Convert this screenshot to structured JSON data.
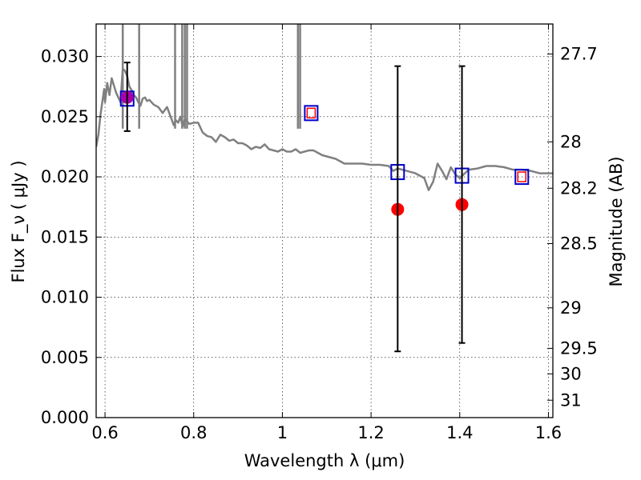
{
  "chart_data": {
    "type": "scatter",
    "title": "",
    "xlabel": "Wavelength  λ (μm)",
    "ylabel": "Flux  F_ν  ( μJy )",
    "ylabel_right": "Magnitude (AB)",
    "xlim": [
      0.58,
      1.61
    ],
    "ylim": [
      0.0,
      0.0327
    ],
    "grid": true,
    "x_ticks": [
      {
        "value": 0.6,
        "label": "0.6"
      },
      {
        "value": 0.8,
        "label": "0.8"
      },
      {
        "value": 1.0,
        "label": "1"
      },
      {
        "value": 1.2,
        "label": "1.2"
      },
      {
        "value": 1.4,
        "label": "1.4"
      },
      {
        "value": 1.6,
        "label": "1.6"
      }
    ],
    "y_ticks": [
      {
        "value": 0.0,
        "label": "0.000"
      },
      {
        "value": 0.005,
        "label": "0.005"
      },
      {
        "value": 0.01,
        "label": "0.010"
      },
      {
        "value": 0.015,
        "label": "0.015"
      },
      {
        "value": 0.02,
        "label": "0.020"
      },
      {
        "value": 0.025,
        "label": "0.025"
      },
      {
        "value": 0.03,
        "label": "0.030"
      }
    ],
    "y_ticks_right": [
      {
        "mag": 27.7,
        "label": "27.7"
      },
      {
        "mag": 28.0,
        "label": "28"
      },
      {
        "mag": 28.2,
        "label": "28.2"
      },
      {
        "mag": 28.5,
        "label": "28.5"
      },
      {
        "mag": 29.0,
        "label": "29"
      },
      {
        "mag": 29.5,
        "label": "29.5"
      },
      {
        "mag": 30.0,
        "label": "30"
      },
      {
        "mag": 31.0,
        "label": "31"
      }
    ],
    "series": [
      {
        "kind": "line",
        "color": "#808080",
        "points": [
          [
            0.58,
            0.0225
          ],
          [
            0.585,
            0.0235
          ],
          [
            0.59,
            0.0252
          ],
          [
            0.595,
            0.0265
          ],
          [
            0.598,
            0.0273
          ],
          [
            0.6,
            0.0262
          ],
          [
            0.605,
            0.0278
          ],
          [
            0.61,
            0.0268
          ],
          [
            0.615,
            0.0282
          ],
          [
            0.62,
            0.0276
          ],
          [
            0.625,
            0.027
          ],
          [
            0.63,
            0.0266
          ],
          [
            0.635,
            0.0262
          ],
          [
            0.64,
            0.029
          ],
          [
            0.645,
            0.0288
          ],
          [
            0.65,
            0.0284
          ],
          [
            0.655,
            0.0275
          ],
          [
            0.66,
            0.0272
          ],
          [
            0.665,
            0.0268
          ],
          [
            0.67,
            0.0266
          ],
          [
            0.675,
            0.0262
          ],
          [
            0.68,
            0.0259
          ],
          [
            0.685,
            0.0265
          ],
          [
            0.69,
            0.0266
          ],
          [
            0.695,
            0.0263
          ],
          [
            0.7,
            0.0264
          ],
          [
            0.71,
            0.026
          ],
          [
            0.72,
            0.0258
          ],
          [
            0.73,
            0.0253
          ],
          [
            0.74,
            0.0258
          ],
          [
            0.75,
            0.0248
          ],
          [
            0.755,
            0.0243
          ],
          [
            0.76,
            0.0247
          ],
          [
            0.765,
            0.0245
          ],
          [
            0.77,
            0.025
          ],
          [
            0.775,
            0.0242
          ],
          [
            0.78,
            0.0248
          ],
          [
            0.79,
            0.0244
          ],
          [
            0.8,
            0.0245
          ],
          [
            0.81,
            0.0245
          ],
          [
            0.82,
            0.0237
          ],
          [
            0.83,
            0.0234
          ],
          [
            0.84,
            0.0233
          ],
          [
            0.85,
            0.0229
          ],
          [
            0.86,
            0.0235
          ],
          [
            0.87,
            0.0233
          ],
          [
            0.88,
            0.023
          ],
          [
            0.89,
            0.0231
          ],
          [
            0.9,
            0.0228
          ],
          [
            0.91,
            0.0228
          ],
          [
            0.92,
            0.0226
          ],
          [
            0.93,
            0.0223
          ],
          [
            0.94,
            0.0225
          ],
          [
            0.95,
            0.0224
          ],
          [
            0.96,
            0.0227
          ],
          [
            0.97,
            0.0223
          ],
          [
            0.98,
            0.0222
          ],
          [
            0.99,
            0.0221
          ],
          [
            1.0,
            0.0223
          ],
          [
            1.01,
            0.0221
          ],
          [
            1.02,
            0.0221
          ],
          [
            1.03,
            0.0223
          ],
          [
            1.04,
            0.022
          ],
          [
            1.05,
            0.0221
          ],
          [
            1.06,
            0.0222
          ],
          [
            1.07,
            0.0222
          ],
          [
            1.08,
            0.022
          ],
          [
            1.09,
            0.0218
          ],
          [
            1.1,
            0.0217
          ],
          [
            1.12,
            0.0215
          ],
          [
            1.14,
            0.0211
          ],
          [
            1.16,
            0.0211
          ],
          [
            1.18,
            0.0211
          ],
          [
            1.2,
            0.021
          ],
          [
            1.22,
            0.021
          ],
          [
            1.24,
            0.0209
          ],
          [
            1.25,
            0.0205
          ],
          [
            1.26,
            0.0207
          ],
          [
            1.28,
            0.0205
          ],
          [
            1.3,
            0.0203
          ],
          [
            1.32,
            0.0199
          ],
          [
            1.33,
            0.0189
          ],
          [
            1.34,
            0.0196
          ],
          [
            1.35,
            0.0211
          ],
          [
            1.36,
            0.0205
          ],
          [
            1.37,
            0.0198
          ],
          [
            1.38,
            0.0208
          ],
          [
            1.39,
            0.0202
          ],
          [
            1.4,
            0.0199
          ],
          [
            1.42,
            0.0206
          ],
          [
            1.44,
            0.0207
          ],
          [
            1.46,
            0.0209
          ],
          [
            1.48,
            0.0209
          ],
          [
            1.5,
            0.0208
          ],
          [
            1.52,
            0.0206
          ],
          [
            1.54,
            0.0206
          ],
          [
            1.56,
            0.0205
          ],
          [
            1.58,
            0.0203
          ],
          [
            1.6,
            0.0203
          ],
          [
            1.61,
            0.0203
          ]
        ]
      },
      {
        "kind": "spikes",
        "color": "#808080",
        "x": [
          0.64,
          0.677,
          0.758,
          0.774,
          0.78,
          0.785,
          1.035,
          1.04
        ]
      },
      {
        "kind": "model-photometry",
        "marker": "square",
        "color": "#0000cc",
        "points": [
          [
            0.65,
            0.0265
          ],
          [
            1.065,
            0.0253
          ],
          [
            1.26,
            0.0204
          ],
          [
            1.405,
            0.0201
          ],
          [
            1.54,
            0.02
          ]
        ]
      },
      {
        "kind": "inner-markers",
        "marker": "square-small",
        "color": "#ff0000",
        "points": [
          [
            1.065,
            0.0253
          ],
          [
            1.54,
            0.02
          ]
        ]
      },
      {
        "kind": "observed",
        "marker": "circle",
        "color": "#ff0000",
        "points": [
          [
            1.26,
            0.0173
          ],
          [
            1.405,
            0.0177
          ]
        ]
      },
      {
        "kind": "observed-purple",
        "marker": "circle",
        "color": "#aa00aa",
        "points": [
          [
            0.65,
            0.0266
          ]
        ]
      },
      {
        "kind": "errorbars",
        "color": "#000000",
        "bars": [
          {
            "x": 0.65,
            "low": 0.0238,
            "high": 0.0295
          },
          {
            "x": 1.26,
            "low": 0.0055,
            "high": 0.0292
          },
          {
            "x": 1.405,
            "low": 0.0062,
            "high": 0.0292
          }
        ]
      }
    ]
  }
}
